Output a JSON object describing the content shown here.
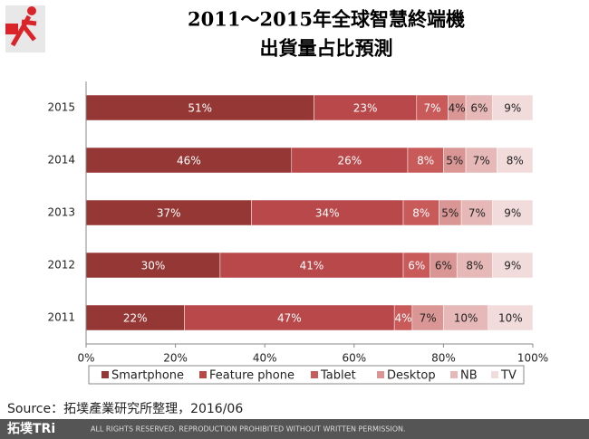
{
  "chart_data": {
    "type": "stacked-barh",
    "title_lines": [
      "2011～2015年全球智慧終端機",
      "出貨量占比預測"
    ],
    "categories": [
      "2015",
      "2014",
      "2013",
      "2012",
      "2011"
    ],
    "series": [
      {
        "name": "Smartphone",
        "color": "#953735",
        "values": [
          51,
          46,
          37,
          30,
          22
        ],
        "value_labels": [
          "51%",
          "46%",
          "37%",
          "30%",
          "22%"
        ]
      },
      {
        "name": "Feature phone",
        "color": "#b9484a",
        "values": [
          23,
          26,
          34,
          41,
          47
        ],
        "value_labels": [
          "23%",
          "26%",
          "34%",
          "41%",
          "47%"
        ]
      },
      {
        "name": "Tablet",
        "color": "#c85a5a",
        "values": [
          7,
          8,
          8,
          6,
          4
        ],
        "value_labels": [
          "7%",
          "8%",
          "8%",
          "6%",
          "4%"
        ]
      },
      {
        "name": "Desktop",
        "color": "#d99694",
        "values": [
          4,
          5,
          5,
          6,
          7
        ],
        "value_labels": [
          "4%",
          "5%",
          "5%",
          "6%",
          "7%"
        ]
      },
      {
        "name": "NB",
        "color": "#e6b9b8",
        "values": [
          6,
          7,
          7,
          8,
          10
        ],
        "value_labels": [
          "6%",
          "7%",
          "7%",
          "8%",
          "10%"
        ]
      },
      {
        "name": "TV",
        "color": "#f2dcdb",
        "values": [
          9,
          8,
          9,
          9,
          10
        ],
        "value_labels": [
          "9%",
          "8%",
          "9%",
          "9%",
          "10%"
        ]
      }
    ],
    "xlim": [
      0,
      100
    ],
    "xticks": [
      {
        "value": 0,
        "label": "0%"
      },
      {
        "value": 20,
        "label": "20%"
      },
      {
        "value": 40,
        "label": "40%"
      },
      {
        "value": 60,
        "label": "60%"
      },
      {
        "value": 80,
        "label": "80%"
      },
      {
        "value": 100,
        "label": "100%"
      }
    ],
    "grid": false,
    "legend": "bottom",
    "source": "Source：拓墣產業研究所整理，2016/06"
  },
  "footer": {
    "logo": "拓墣TRi",
    "rights": "ALL RIGHTS RESERVED. REPRODUCTION PROHIBITED WITHOUT WRITTEN PERMISSION."
  }
}
